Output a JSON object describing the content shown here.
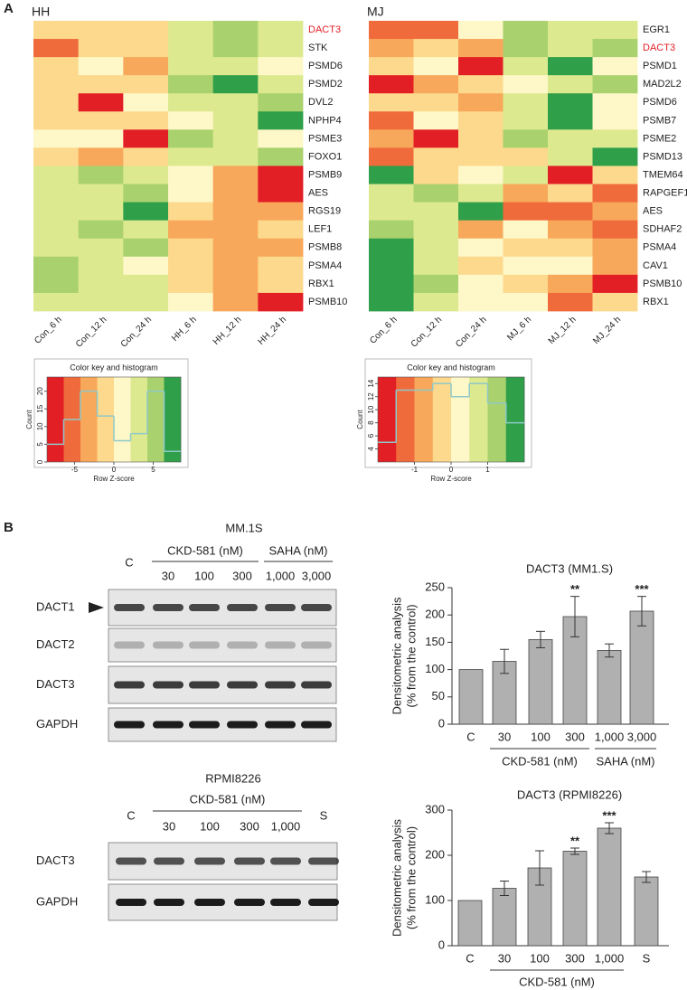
{
  "panel_labels": [
    "A",
    "B"
  ],
  "chart_data": [
    {
      "type": "heatmap",
      "title": "HH",
      "rows": [
        "DACT3",
        "STK",
        "PSMD6",
        "PSMD2",
        "DVL2",
        "NPHP4",
        "PSME3",
        "FOXO1",
        "PSMB9",
        "AES",
        "RGS19",
        "LEF1",
        "PSMB8",
        "PSMA4",
        "RBX1",
        "PSMB10"
      ],
      "columns": [
        "Con_6 h",
        "Con_12 h",
        "Con_24 h",
        "HH_6 h",
        "HH_12 h",
        "HH_24 h"
      ],
      "values": [
        [
          -1.1,
          -1.1,
          -1.1,
          3.2,
          5.3,
          3.2
        ],
        [
          -5.3,
          -1.1,
          -1.1,
          3.2,
          5.3,
          3.2
        ],
        [
          -1.1,
          1.1,
          -3.2,
          3.2,
          3.2,
          1.1
        ],
        [
          -1.1,
          -1.1,
          -1.1,
          5.3,
          7.4,
          3.2
        ],
        [
          -1.1,
          -7.4,
          1.1,
          3.2,
          3.2,
          5.3
        ],
        [
          -1.1,
          -1.1,
          -1.1,
          1.1,
          3.2,
          7.4
        ],
        [
          1.1,
          1.1,
          -7.4,
          5.3,
          3.2,
          1.1
        ],
        [
          -1.1,
          -3.2,
          -1.1,
          3.2,
          3.2,
          5.3
        ],
        [
          3.2,
          5.3,
          3.2,
          1.1,
          -3.2,
          -7.4
        ],
        [
          3.2,
          3.2,
          5.3,
          1.1,
          -3.2,
          -7.4
        ],
        [
          3.2,
          3.2,
          7.4,
          -1.1,
          -3.2,
          -3.2
        ],
        [
          3.2,
          5.3,
          3.2,
          -3.2,
          -3.2,
          -1.1
        ],
        [
          3.2,
          3.2,
          5.3,
          -1.1,
          -3.2,
          -3.2
        ],
        [
          5.3,
          3.2,
          1.1,
          -1.1,
          -3.2,
          -1.1
        ],
        [
          5.3,
          3.2,
          3.2,
          -1.1,
          -3.2,
          -1.1
        ],
        [
          3.2,
          3.2,
          3.2,
          1.1,
          -3.2,
          -7.4
        ]
      ],
      "colors": [
        "#e31f26",
        "#f06b3c",
        "#f8a85a",
        "#fcd98c",
        "#fef7c8",
        "#dde98f",
        "#a9d16d",
        "#2f9f4a"
      ],
      "highlight": {
        "row": 0,
        "color": "#e31f26"
      },
      "color_key": {
        "title": "Color key and histogram",
        "xlabel": "Row Z-score",
        "ylabel": "Count",
        "xlim": [
          -8.5,
          8.5
        ],
        "xticks": [
          -5,
          0,
          5
        ],
        "ylim": [
          0,
          24
        ],
        "yticks": [
          0,
          5,
          10,
          15,
          20
        ],
        "counts": [
          5,
          12,
          20,
          13,
          6,
          8,
          20,
          3
        ],
        "line_color": "#8fc9c9"
      }
    },
    {
      "type": "heatmap",
      "title": "MJ",
      "rows": [
        "EGR1",
        "DACT3",
        "PSMD1",
        "MAD2L2",
        "PSMD6",
        "PSMB7",
        "PSME2",
        "PSMD13",
        "TMEM64",
        "RAPGEF1",
        "AES",
        "SDHAF2",
        "PSMA4",
        "CAV1",
        "PSMB10",
        "RBX1"
      ],
      "columns": [
        "Con_6 h",
        "Con_12 h",
        "Con_24 h",
        "MJ_6 h",
        "MJ_12 h",
        "MJ_24 h"
      ],
      "values": [
        [
          -1.25,
          -1.25,
          0.25,
          1.25,
          0.75,
          0.75
        ],
        [
          -0.75,
          -0.25,
          -0.75,
          1.25,
          0.75,
          1.25
        ],
        [
          -0.25,
          0.25,
          -1.75,
          0.75,
          1.75,
          0.25
        ],
        [
          -1.75,
          -0.75,
          -0.25,
          0.25,
          0.75,
          1.25
        ],
        [
          -0.25,
          -0.25,
          -0.75,
          0.75,
          1.75,
          0.25
        ],
        [
          -1.25,
          0.25,
          -0.25,
          0.75,
          1.75,
          0.25
        ],
        [
          -0.75,
          -1.75,
          -0.25,
          1.25,
          0.75,
          0.75
        ],
        [
          -1.25,
          -0.25,
          -0.25,
          -0.25,
          0.75,
          1.75
        ],
        [
          1.75,
          -0.25,
          0.25,
          0.75,
          -1.75,
          -0.25
        ],
        [
          0.75,
          1.25,
          0.75,
          -0.75,
          -0.25,
          -1.25
        ],
        [
          0.75,
          0.75,
          1.75,
          -1.25,
          -1.25,
          -0.75
        ],
        [
          1.25,
          0.75,
          -0.75,
          0.25,
          -0.75,
          -1.25
        ],
        [
          1.75,
          0.75,
          0.25,
          -0.25,
          -0.25,
          -0.75
        ],
        [
          1.75,
          0.75,
          -0.25,
          0.25,
          0.25,
          -0.75
        ],
        [
          1.75,
          1.25,
          0.25,
          -0.25,
          -0.75,
          -1.75
        ],
        [
          1.75,
          0.75,
          0.25,
          0.25,
          -1.25,
          -0.25
        ]
      ],
      "colors": [
        "#e31f26",
        "#f06b3c",
        "#f8a85a",
        "#fcd98c",
        "#fef7c8",
        "#dde98f",
        "#a9d16d",
        "#2f9f4a"
      ],
      "highlight": {
        "row": 1,
        "color": "#e31f26"
      },
      "color_key": {
        "title": "Color key and histogram",
        "xlabel": "Row Z-score",
        "ylabel": "Count",
        "xlim": [
          -2,
          2
        ],
        "xticks": [
          -1,
          0,
          1
        ],
        "ylim": [
          2,
          15
        ],
        "yticks": [
          4,
          6,
          8,
          10,
          12,
          14
        ],
        "counts": [
          5,
          13,
          13,
          14,
          12,
          14,
          11,
          8
        ],
        "line_color": "#8fc9c9"
      }
    },
    {
      "type": "bar",
      "title": "DACT3 (MM1.S)",
      "ylabel": [
        "Densitometric analysis",
        "(% from the control)"
      ],
      "categories": [
        "C",
        "30",
        "100",
        "300",
        "1,000",
        "3,000"
      ],
      "values": [
        100,
        115,
        155,
        197,
        135,
        207
      ],
      "errors": [
        null,
        22,
        15,
        37,
        12,
        27
      ],
      "significance": [
        null,
        null,
        null,
        "**",
        null,
        "***"
      ],
      "groups": [
        {
          "label": "CKD-581 (nM)",
          "from": 1,
          "to": 3
        },
        {
          "label": "SAHA (nM)",
          "from": 4,
          "to": 5
        }
      ],
      "color": "#b0b0b0",
      "ylim": [
        0,
        250
      ],
      "yticks": [
        0,
        50,
        100,
        150,
        200,
        250
      ]
    },
    {
      "type": "bar",
      "title": "DACT3 (RPMI8226)",
      "ylabel": [
        "Densitometric analysis",
        "(% from the control)"
      ],
      "categories": [
        "C",
        "30",
        "100",
        "300",
        "1,000",
        "S"
      ],
      "values": [
        100,
        127,
        172,
        209,
        260,
        152
      ],
      "errors": [
        null,
        16,
        38,
        7,
        12,
        12
      ],
      "significance": [
        null,
        null,
        null,
        "**",
        "***",
        null
      ],
      "groups": [
        {
          "label": "CKD-581 (nM)",
          "from": 1,
          "to": 4
        }
      ],
      "color": "#b0b0b0",
      "ylim": [
        0,
        300
      ],
      "yticks": [
        0,
        100,
        200,
        300
      ]
    }
  ],
  "blots": [
    {
      "title": "MM.1S",
      "lanes": [
        "C",
        "30",
        "100",
        "300",
        "1,000",
        "3,000"
      ],
      "groups": [
        {
          "label": "CKD-581 (nM)",
          "from": 1,
          "to": 3
        },
        {
          "label": "SAHA (nM)",
          "from": 4,
          "to": 5
        }
      ],
      "rows": [
        "DACT1",
        "DACT2",
        "DACT3",
        "GAPDH"
      ],
      "arrow_row": 0
    },
    {
      "title": "RPMI8226",
      "lanes": [
        "C",
        "30",
        "100",
        "300",
        "1,000",
        "S"
      ],
      "groups": [
        {
          "label": "CKD-581 (nM)",
          "from": 1,
          "to": 4
        }
      ],
      "rows": [
        "DACT3",
        "GAPDH"
      ]
    }
  ]
}
